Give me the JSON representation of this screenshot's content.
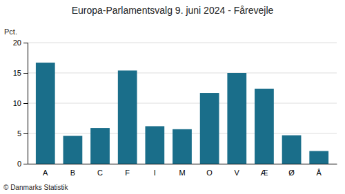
{
  "chart_data": {
    "type": "bar",
    "title": "Europa-Parlamentsvalg 9. juni 2024 - Fårevejle",
    "categories": [
      "A",
      "B",
      "C",
      "F",
      "I",
      "M",
      "O",
      "V",
      "Æ",
      "Ø",
      "Å"
    ],
    "values": [
      16.7,
      4.6,
      5.9,
      15.4,
      6.2,
      5.7,
      11.7,
      15.0,
      12.4,
      4.7,
      2.1
    ],
    "color": "#1a6e8a",
    "ylabel": "Pct.",
    "ylim": [
      0,
      20
    ],
    "yticks": [
      0,
      5,
      10,
      15,
      20
    ],
    "grid": true,
    "annotations": [
      "© Danmarks Statistik"
    ]
  }
}
